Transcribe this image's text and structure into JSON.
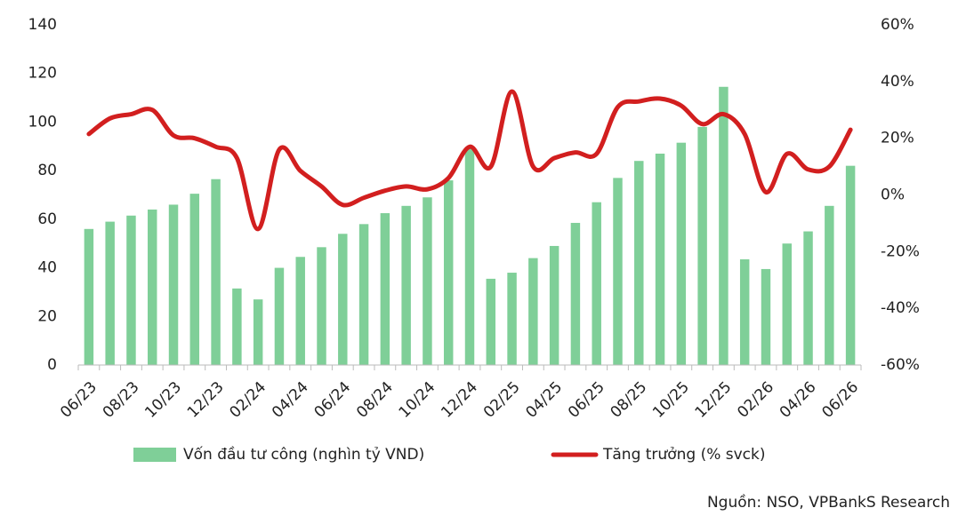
{
  "chart_data": {
    "type": "bar-line",
    "categories": [
      "06/23",
      null,
      "08/23",
      null,
      "10/23",
      null,
      "12/23",
      null,
      "02/24",
      null,
      "04/24",
      null,
      "06/24",
      null,
      "08/24",
      null,
      "10/24",
      null,
      "12/24",
      null,
      "02/25",
      null,
      "04/25",
      null,
      "06/25",
      null,
      "08/25",
      null,
      "10/25",
      null,
      "12/25",
      null,
      "02/26",
      null,
      "04/26",
      null,
      "06/26"
    ],
    "series": [
      {
        "name": "Vốn đầu tư công (nghìn tỷ VND)",
        "type": "bar",
        "color": "#7fcf98",
        "axis": "y",
        "values": [
          56,
          59,
          61.5,
          64,
          66,
          70.5,
          76.5,
          31.5,
          27,
          40,
          44.5,
          48.5,
          54,
          58,
          62.5,
          65.5,
          69,
          76,
          89,
          35.5,
          38,
          44,
          49,
          58.5,
          67,
          77,
          84,
          87,
          91.5,
          98,
          114.5,
          43.5,
          39.5,
          50,
          55,
          65.5,
          82
        ]
      },
      {
        "name": "Tăng trưởng (% svck)",
        "type": "line",
        "color": "#d21f1f",
        "axis": "y2",
        "values": [
          21.5,
          27,
          28.5,
          30,
          21,
          20,
          17,
          13,
          -12,
          16,
          8.5,
          3,
          -3.5,
          -1,
          1.5,
          3,
          2,
          6,
          17,
          10,
          36.5,
          10,
          13,
          15,
          14.5,
          31,
          33,
          34,
          31.5,
          25,
          28.5,
          21.5,
          1,
          14.5,
          9,
          10,
          23
        ]
      }
    ],
    "ylim": [
      0,
      140
    ],
    "yticks": [
      0,
      20,
      40,
      60,
      80,
      100,
      120,
      140
    ],
    "y2lim": [
      -60,
      60
    ],
    "y2ticks": [
      {
        "value": -60,
        "label": "-60%"
      },
      {
        "value": -40,
        "label": "-40%"
      },
      {
        "value": -20,
        "label": "-20%"
      },
      {
        "value": 0,
        "label": "0%"
      },
      {
        "value": 20,
        "label": "20%"
      },
      {
        "value": 40,
        "label": "40%"
      },
      {
        "value": 60,
        "label": "60%"
      }
    ],
    "source": "Nguồn: NSO, VPBankS Research"
  }
}
